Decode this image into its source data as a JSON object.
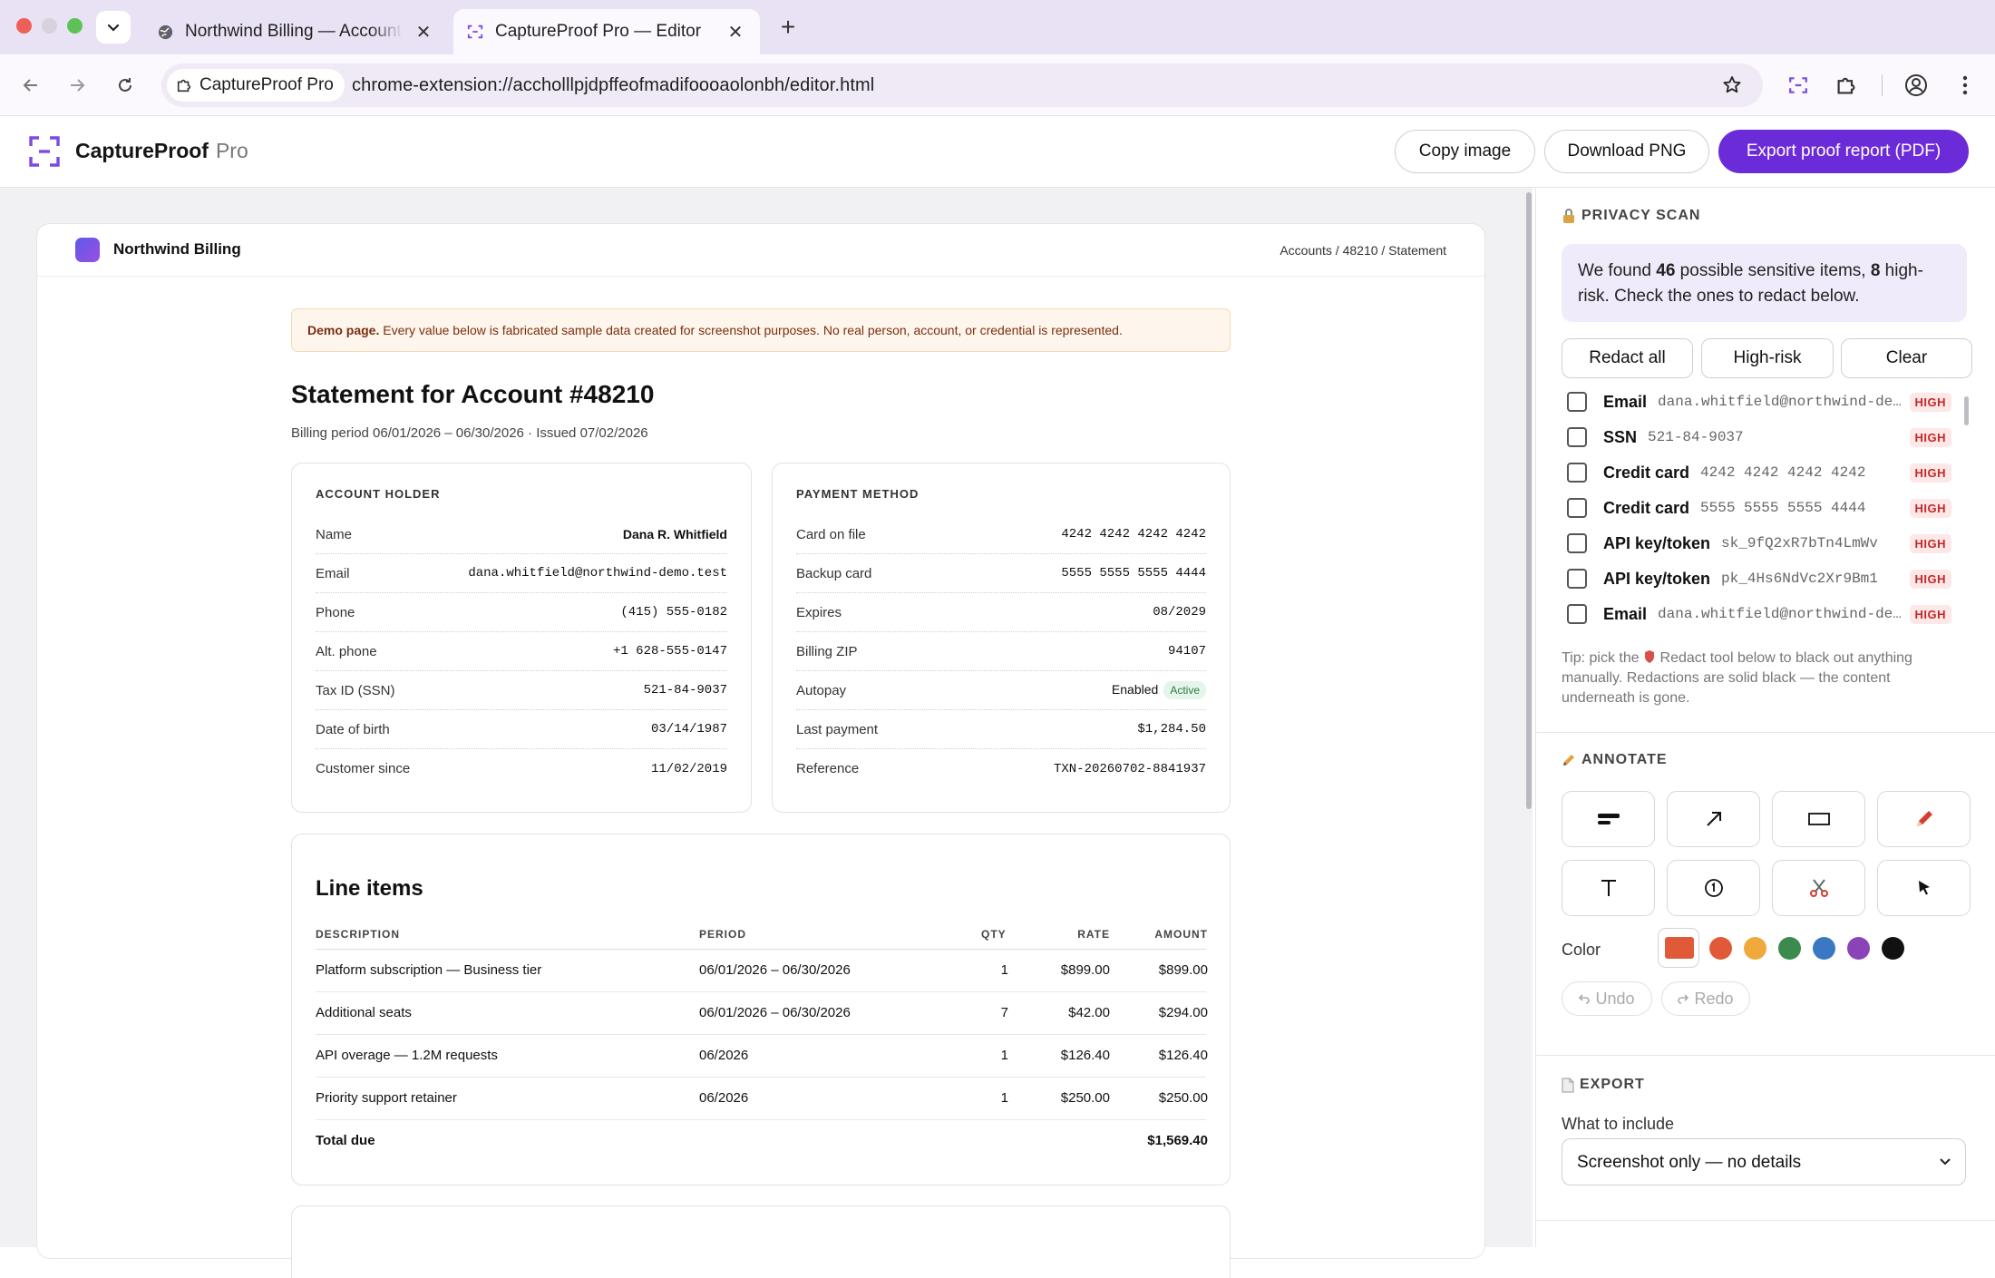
{
  "browser": {
    "tabs": [
      {
        "title": "Northwind Billing — Account Statement",
        "icon": "globe-icon"
      },
      {
        "title": "CaptureProof Pro — Editor",
        "icon": "capture-icon"
      }
    ],
    "extension_chip": "CaptureProof Pro",
    "url": "chrome-extension://accholllpjdpffeofmadifoooaolonbh/editor.html"
  },
  "app": {
    "name": "CaptureProof",
    "tier": "Pro",
    "copy_label": "Copy image",
    "download_label": "Download PNG",
    "export_label": "Export proof report (PDF)"
  },
  "page": {
    "brand": "Northwind Billing",
    "breadcrumb": "Accounts / 48210 / Statement",
    "demo_strong": "Demo page.",
    "demo_text": " Every value below is fabricated sample data created for screenshot purposes. No real person, account, or credential is represented.",
    "title": "Statement for Account #48210",
    "subtitle": "Billing period 06/01/2026 – 06/30/2026 · Issued 07/02/2026",
    "account_holder": {
      "heading": "ACCOUNT HOLDER",
      "rows": [
        {
          "k": "Name",
          "v": "Dana R. Whitfield"
        },
        {
          "k": "Email",
          "v": "dana.whitfield@northwind-demo.test"
        },
        {
          "k": "Phone",
          "v": "(415) 555-0182"
        },
        {
          "k": "Alt. phone",
          "v": "+1 628-555-0147"
        },
        {
          "k": "Tax ID (SSN)",
          "v": "521-84-9037"
        },
        {
          "k": "Date of birth",
          "v": "03/14/1987"
        },
        {
          "k": "Customer since",
          "v": "11/02/2019"
        }
      ]
    },
    "payment_method": {
      "heading": "PAYMENT METHOD",
      "rows": [
        {
          "k": "Card on file",
          "v": "4242 4242 4242 4242"
        },
        {
          "k": "Backup card",
          "v": "5555 5555 5555 4444"
        },
        {
          "k": "Expires",
          "v": "08/2029"
        },
        {
          "k": "Billing ZIP",
          "v": "94107"
        },
        {
          "k": "Autopay",
          "v": "Enabled",
          "badge": "Active"
        },
        {
          "k": "Last payment",
          "v": "$1,284.50"
        },
        {
          "k": "Reference",
          "v": "TXN-20260702-8841937"
        }
      ]
    },
    "line_items": {
      "heading": "Line items",
      "columns": [
        "DESCRIPTION",
        "PERIOD",
        "QTY",
        "RATE",
        "AMOUNT"
      ],
      "rows": [
        {
          "desc": "Platform subscription — Business tier",
          "period": "06/01/2026 – 06/30/2026",
          "qty": "1",
          "rate": "$899.00",
          "amount": "$899.00"
        },
        {
          "desc": "Additional seats",
          "period": "06/01/2026 – 06/30/2026",
          "qty": "7",
          "rate": "$42.00",
          "amount": "$294.00"
        },
        {
          "desc": "API overage — 1.2M requests",
          "period": "06/2026",
          "qty": "1",
          "rate": "$126.40",
          "amount": "$126.40"
        },
        {
          "desc": "Priority support retainer",
          "period": "06/2026",
          "qty": "1",
          "rate": "$250.00",
          "amount": "$250.00"
        }
      ],
      "total_label": "Total due",
      "total_value": "$1,569.40"
    }
  },
  "sidebar": {
    "privacy": {
      "heading": "PRIVACY SCAN",
      "found_pre": "We found ",
      "found_count": "46",
      "found_mid": " possible sensitive items, ",
      "high_count": "8",
      "found_post": " high-risk. Check the ones to redact below.",
      "buttons": [
        "Redact all",
        "High-risk",
        "Clear"
      ],
      "items": [
        {
          "type": "Email",
          "value": "dana.whitfield@northwind-demo.test",
          "risk": "HIGH"
        },
        {
          "type": "SSN",
          "value": "521-84-9037",
          "risk": "HIGH"
        },
        {
          "type": "Credit card",
          "value": "4242 4242 4242 4242",
          "risk": "HIGH"
        },
        {
          "type": "Credit card",
          "value": "5555 5555 5555 4444",
          "risk": "HIGH"
        },
        {
          "type": "API key/token",
          "value": "sk_9fQ2xR7bTn4LmWv",
          "risk": "HIGH"
        },
        {
          "type": "API key/token",
          "value": "pk_4Hs6NdVc2Xr9Bm1",
          "risk": "HIGH"
        },
        {
          "type": "Email",
          "value": "dana.whitfield@northwind-demo.test",
          "risk": "HIGH"
        }
      ],
      "tip_pre": "Tip: pick the ",
      "tip_post": " Redact tool below to black out anything manually. Redactions are solid black — the content underneath is gone."
    },
    "annotate": {
      "heading": "ANNOTATE",
      "tools": [
        "redact-tool",
        "arrow-tool",
        "rectangle-tool",
        "pen-tool",
        "text-tool",
        "step-number-tool",
        "crop-tool",
        "select-tool"
      ],
      "color_label": "Color",
      "colors": [
        "#e05a3a",
        "#e05a3a",
        "#f0a93b",
        "#3b8a4e",
        "#3b78c4",
        "#8a44b8",
        "#111111"
      ],
      "undo": "Undo",
      "redo": "Redo"
    },
    "export": {
      "heading": "EXPORT",
      "include_label": "What to include",
      "include_value": "Screenshot only — no details"
    }
  }
}
